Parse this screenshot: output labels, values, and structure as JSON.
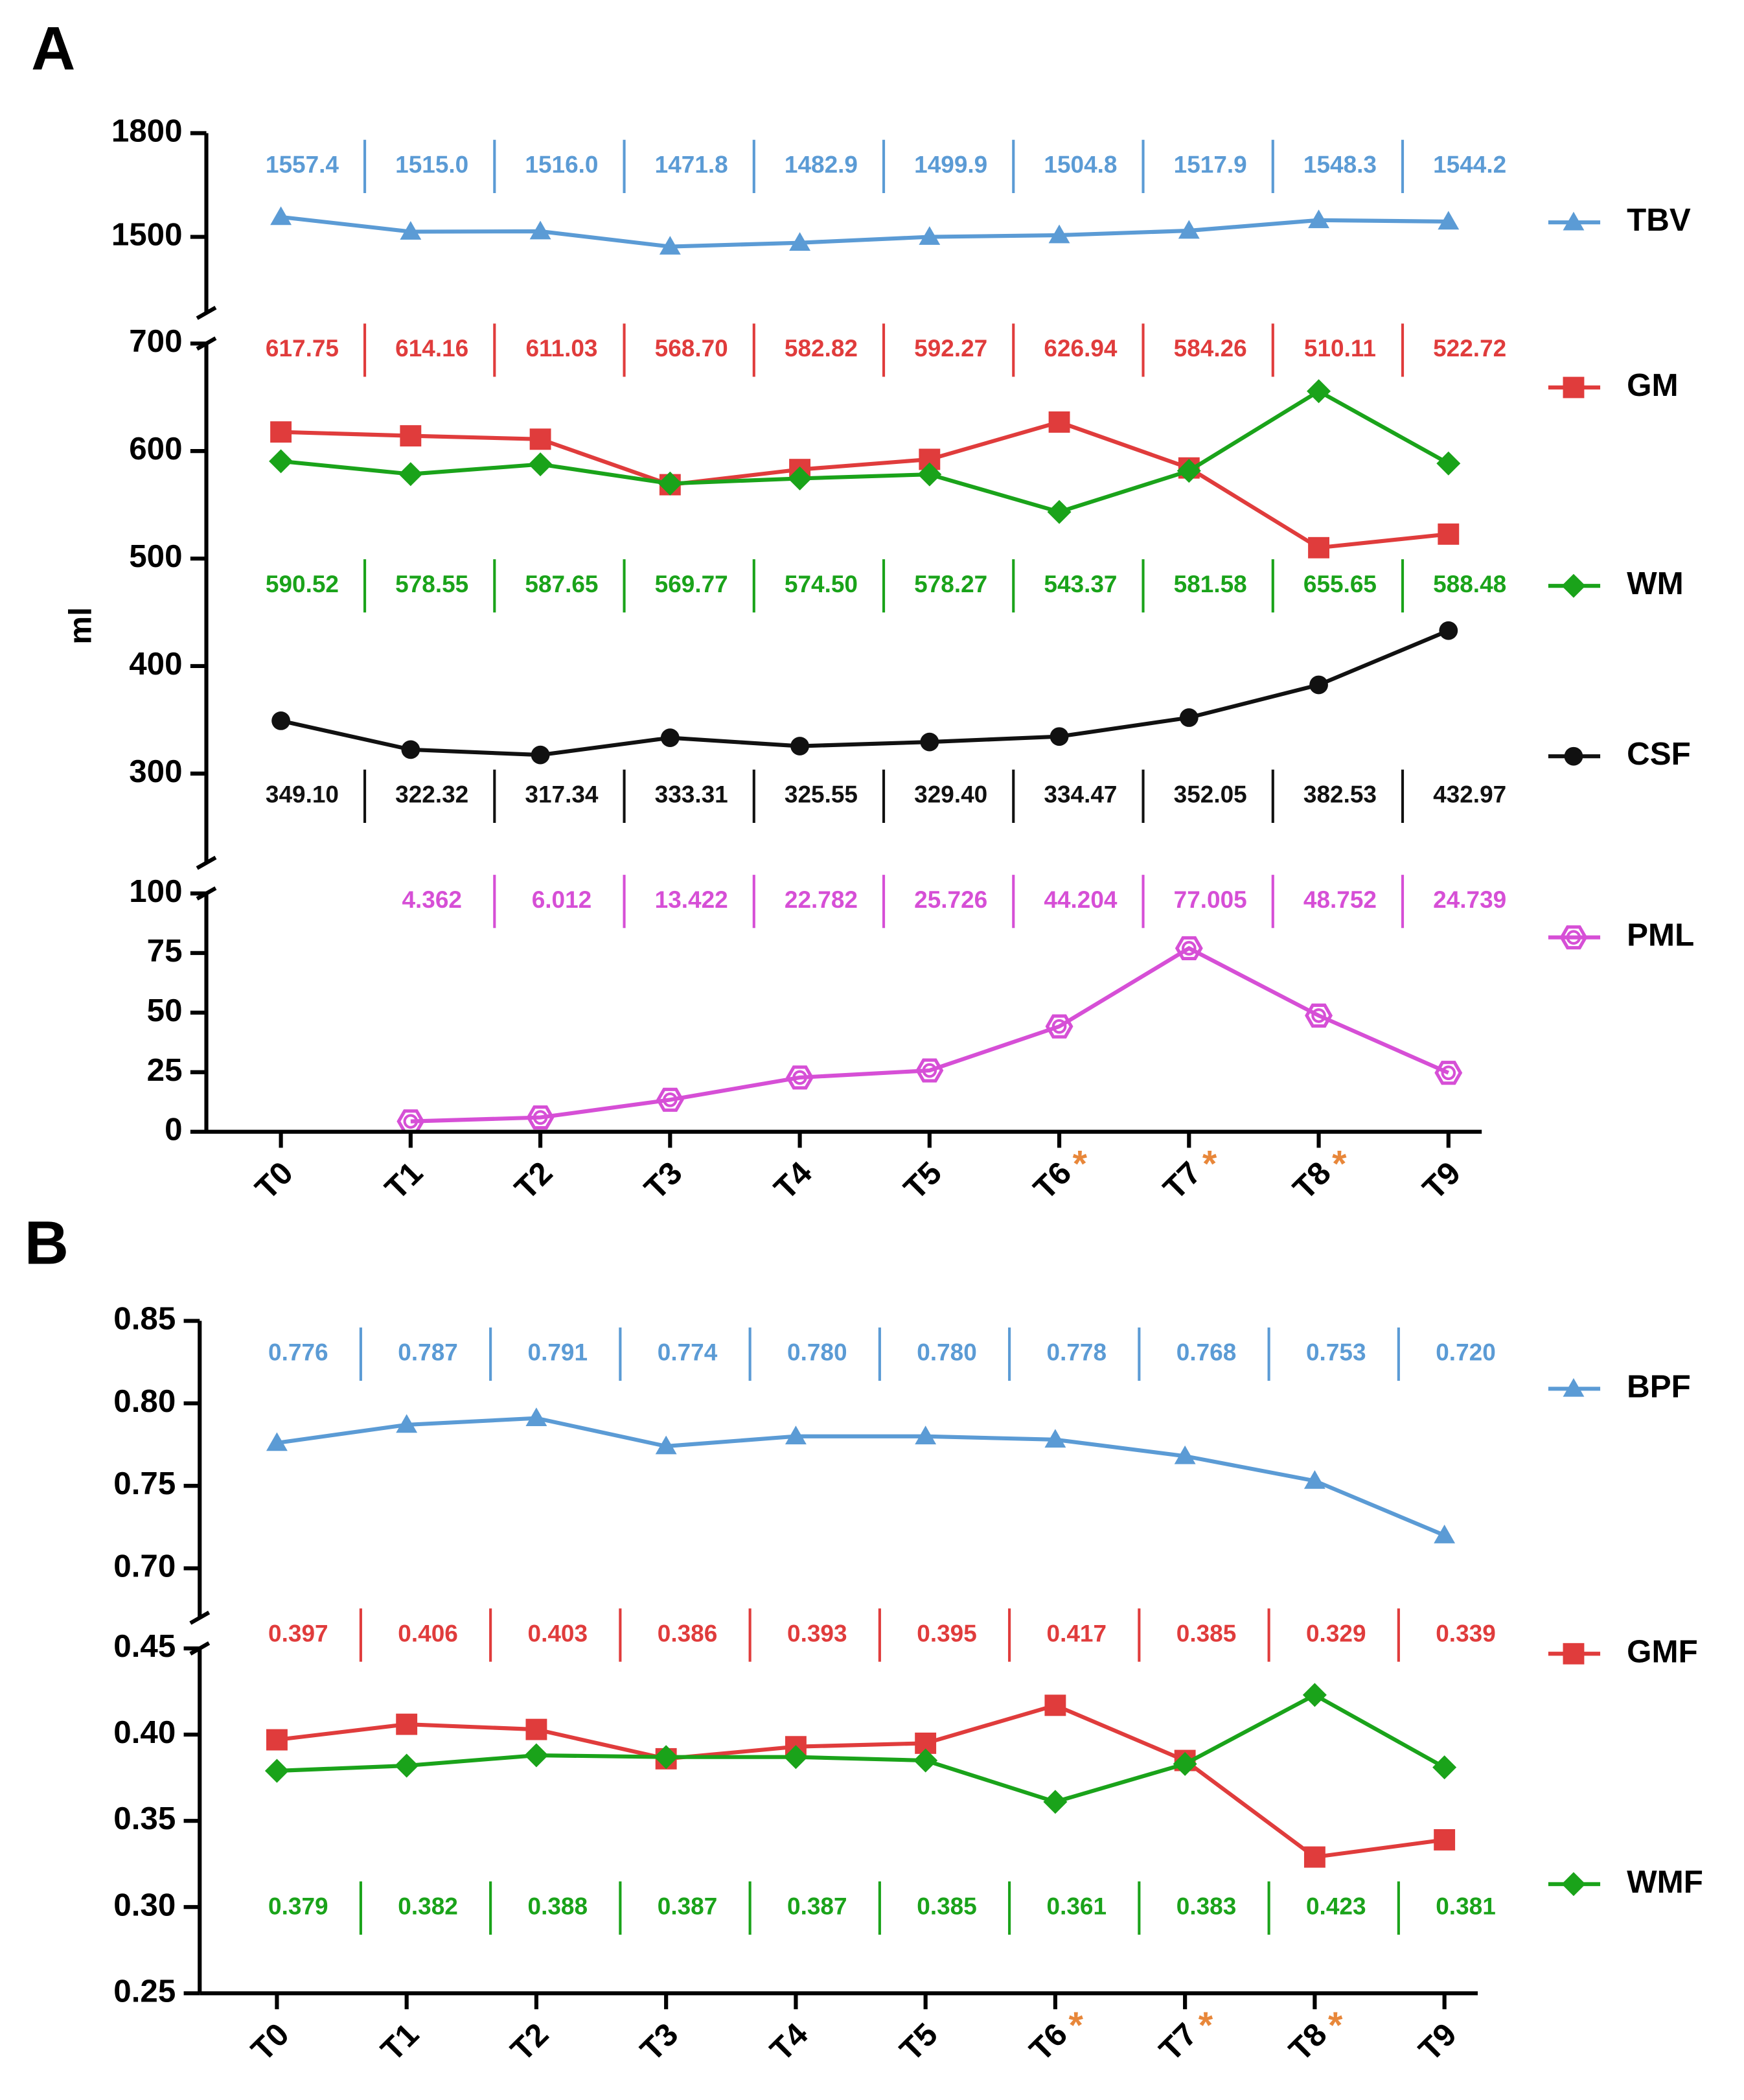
{
  "chart_data": [
    {
      "type": "line",
      "panel_label": "A",
      "y_label": "ml",
      "categories": [
        "T0",
        "T1",
        "T2",
        "T3",
        "T4",
        "T5",
        "T6",
        "T7",
        "T8",
        "T9"
      ],
      "x_marks": [
        null,
        null,
        null,
        null,
        null,
        null,
        "*",
        "*",
        "*",
        null
      ],
      "x_mark_color": "#e8873a",
      "segments": [
        {
          "ylim": [
            1280,
            1800
          ],
          "yticks": [
            1500,
            1800
          ],
          "series": [
            {
              "name": "TBV",
              "color": "#5b9bd5",
              "marker": "triangle",
              "values": [
                1557.4,
                1515.0,
                1516.0,
                1471.8,
                1482.9,
                1499.9,
                1504.8,
                1517.9,
                1548.3,
                1544.2
              ],
              "value_labels": [
                "1557.4",
                "1515.0",
                "1516.0",
                "1471.8",
                "1482.9",
                "1499.9",
                "1504.8",
                "1517.9",
                "1548.3",
                "1544.2"
              ]
            }
          ]
        },
        {
          "ylim": [
            217,
            700
          ],
          "yticks": [
            300,
            400,
            500,
            600,
            700
          ],
          "series": [
            {
              "name": "GM",
              "color": "#e03c3c",
              "marker": "square",
              "values": [
                617.75,
                614.16,
                611.03,
                568.7,
                582.82,
                592.27,
                626.94,
                584.26,
                510.11,
                522.72
              ],
              "value_labels": [
                "617.75",
                "614.16",
                "611.03",
                "568.70",
                "582.82",
                "592.27",
                "626.94",
                "584.26",
                "510.11",
                "522.72"
              ]
            },
            {
              "name": "WM",
              "color": "#1aa31a",
              "marker": "diamond",
              "values": [
                590.52,
                578.55,
                587.65,
                569.77,
                574.5,
                578.27,
                543.37,
                581.58,
                655.65,
                588.48
              ],
              "value_labels": [
                "590.52",
                "578.55",
                "587.65",
                "569.77",
                "574.50",
                "578.27",
                "543.37",
                "581.58",
                "655.65",
                "588.48"
              ]
            },
            {
              "name": "CSF",
              "color": "#111111",
              "marker": "circle",
              "values": [
                349.1,
                322.32,
                317.34,
                333.31,
                325.55,
                329.4,
                334.47,
                352.05,
                382.53,
                432.97
              ],
              "value_labels": [
                "349.10",
                "322.32",
                "317.34",
                "333.31",
                "325.55",
                "329.40",
                "334.47",
                "352.05",
                "382.53",
                "432.97"
              ]
            }
          ]
        },
        {
          "ylim": [
            0,
            100
          ],
          "yticks": [
            0,
            25,
            50,
            75,
            100
          ],
          "series": [
            {
              "name": "PML",
              "color": "#d64fd6",
              "marker": "hexagon",
              "values": [
                null,
                4.362,
                6.012,
                13.422,
                22.782,
                25.726,
                44.204,
                77.005,
                48.752,
                24.739
              ]
            }
          ]
        }
      ]
    },
    {
      "type": "line",
      "panel_label": "B",
      "categories": [
        "T0",
        "T1",
        "T2",
        "T3",
        "T4",
        "T5",
        "T6",
        "T7",
        "T8",
        "T9"
      ],
      "x_marks": [
        null,
        null,
        null,
        null,
        null,
        null,
        "*",
        "*",
        "*",
        null
      ],
      "x_mark_color": "#e8873a",
      "segments": [
        {
          "ylim": [
            0.67,
            0.85
          ],
          "yticks": [
            {
              "value": 0.7,
              "label": "0.70"
            },
            0.75,
            {
              "value": 0.8,
              "label": "0.80"
            },
            0.85
          ],
          "series": [
            {
              "name": "BPF",
              "color": "#5b9bd5",
              "marker": "triangle",
              "values": [
                0.776,
                0.787,
                0.791,
                0.774,
                0.78,
                0.78,
                0.778,
                0.768,
                0.753,
                0.72
              ],
              "value_labels": [
                "0.776",
                "0.787",
                "0.791",
                "0.774",
                "0.780",
                "0.780",
                "0.778",
                "0.768",
                "0.753",
                "0.720"
              ]
            }
          ]
        },
        {
          "ylim": [
            0.25,
            0.45
          ],
          "yticks": [
            0.25,
            {
              "value": 0.3,
              "label": "0.30"
            },
            0.35,
            {
              "value": 0.4,
              "label": "0.40"
            },
            0.45
          ],
          "series": [
            {
              "name": "GMF",
              "color": "#e03c3c",
              "marker": "square",
              "values": [
                0.397,
                0.406,
                0.403,
                0.386,
                0.393,
                0.395,
                0.417,
                0.385,
                0.329,
                0.339
              ]
            },
            {
              "name": "WMF",
              "color": "#1aa31a",
              "marker": "diamond",
              "values": [
                0.379,
                0.382,
                0.388,
                0.387,
                0.387,
                0.385,
                0.361,
                0.383,
                0.423,
                0.381
              ]
            }
          ]
        }
      ]
    }
  ]
}
